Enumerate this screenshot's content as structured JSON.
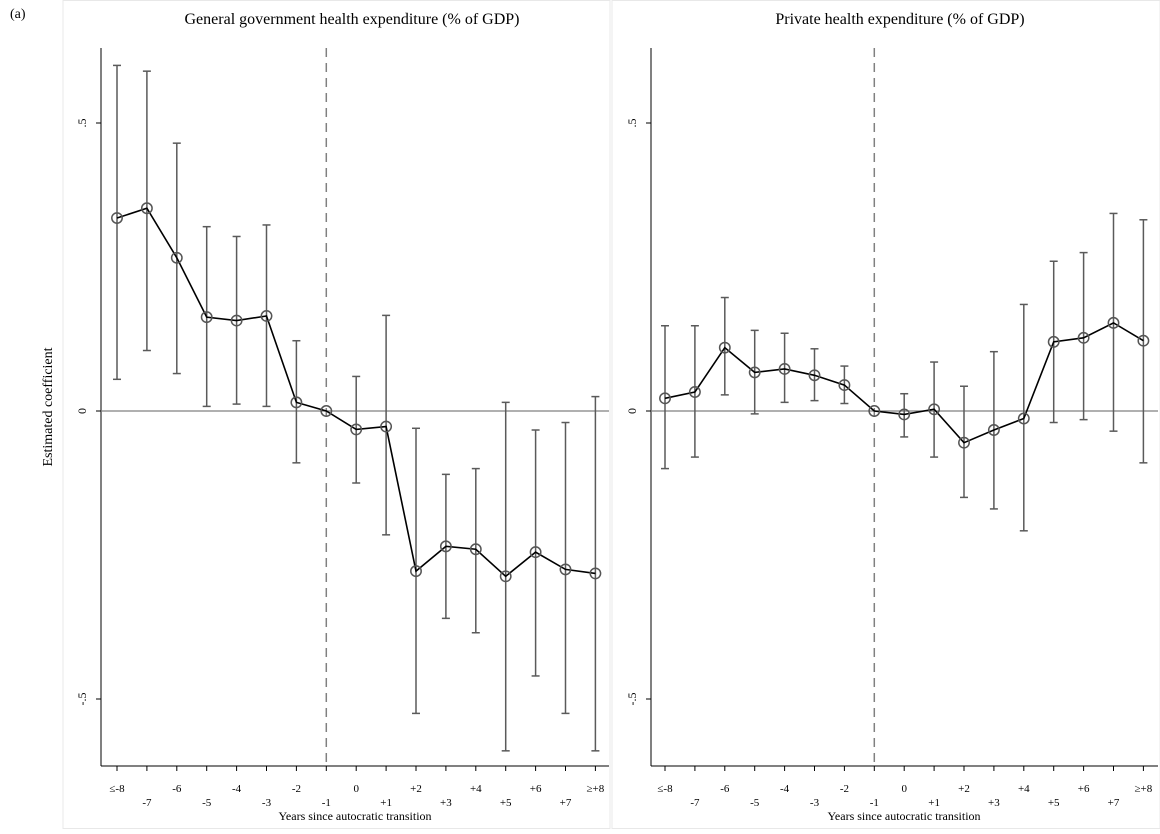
{
  "figure": {
    "panel_tag": "(a)",
    "colors": {
      "background": "#ffffff",
      "panel_border": "#e8e8e8",
      "axis": "#000000",
      "zero_line": "#808080",
      "ci_bar": "#5a5a5a",
      "estimate_line": "#000000",
      "marker_edge": "#555555",
      "reference_line": "#808080"
    }
  },
  "chart_data": [
    {
      "type": "line",
      "title": "General government health expenditure (% of GDP)",
      "xlabel": "Years since autocratic transition",
      "ylabel": "Estimated coefficient",
      "categories": [
        "≤-8",
        "-7",
        "-6",
        "-5",
        "-4",
        "-3",
        "-2",
        "-1",
        "0",
        "+1",
        "+2",
        "+3",
        "+4",
        "+5",
        "+6",
        "+7",
        "≥+8"
      ],
      "ylim": [
        -0.62,
        0.62
      ],
      "yticks": [
        -0.5,
        0,
        0.5
      ],
      "ytick_labels": [
        "-.5",
        "0",
        ".5"
      ],
      "reference_line_at": "-1",
      "zero_line": true,
      "grid": false,
      "series": [
        {
          "values": [
            0.335,
            0.352,
            0.266,
            0.163,
            0.157,
            0.165,
            0.015,
            0.0,
            -0.032,
            -0.027,
            -0.278,
            -0.235,
            -0.24,
            -0.287,
            -0.245,
            -0.275,
            -0.282
          ],
          "ci_low": [
            0.055,
            0.105,
            0.065,
            0.008,
            0.012,
            0.008,
            -0.09,
            0.0,
            -0.125,
            -0.215,
            -0.525,
            -0.36,
            -0.385,
            -0.59,
            -0.46,
            -0.525,
            -0.59
          ],
          "ci_high": [
            0.6,
            0.59,
            0.465,
            0.32,
            0.303,
            0.323,
            0.122,
            0.0,
            0.06,
            0.166,
            -0.03,
            -0.11,
            -0.1,
            0.015,
            -0.033,
            -0.02,
            0.025
          ]
        }
      ]
    },
    {
      "type": "line",
      "title": "Private health expenditure (% of GDP)",
      "xlabel": "Years since autocratic transition",
      "ylabel": "",
      "categories": [
        "≤-8",
        "-7",
        "-6",
        "-5",
        "-4",
        "-3",
        "-2",
        "-1",
        "0",
        "+1",
        "+2",
        "+3",
        "+4",
        "+5",
        "+6",
        "+7",
        "≥+8"
      ],
      "ylim": [
        -0.62,
        0.62
      ],
      "yticks": [
        -0.5,
        0,
        0.5
      ],
      "ytick_labels": [
        "-.5",
        "0",
        ".5"
      ],
      "reference_line_at": "-1",
      "zero_line": true,
      "grid": false,
      "series": [
        {
          "values": [
            0.022,
            0.033,
            0.11,
            0.067,
            0.073,
            0.062,
            0.045,
            0.0,
            -0.006,
            0.003,
            -0.055,
            -0.033,
            -0.013,
            0.12,
            0.127,
            0.153,
            0.122
          ],
          "ci_low": [
            -0.1,
            -0.08,
            0.028,
            -0.005,
            0.015,
            0.018,
            0.013,
            0.0,
            -0.045,
            -0.08,
            -0.15,
            -0.17,
            -0.208,
            -0.02,
            -0.015,
            -0.035,
            -0.09
          ],
          "ci_high": [
            0.148,
            0.148,
            0.197,
            0.14,
            0.135,
            0.108,
            0.078,
            0.0,
            0.03,
            0.085,
            0.043,
            0.103,
            0.185,
            0.26,
            0.275,
            0.343,
            0.332
          ]
        }
      ]
    }
  ]
}
